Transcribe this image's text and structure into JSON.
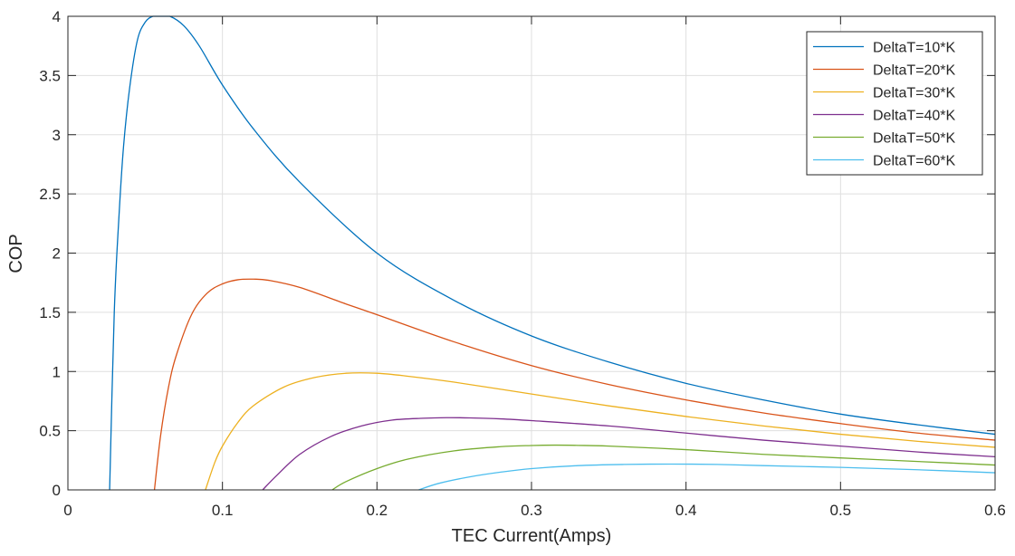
{
  "chart_data": {
    "type": "line",
    "title": "",
    "xlabel": "TEC Current(Amps)",
    "ylabel": "COP",
    "xlim": [
      0,
      0.6
    ],
    "ylim": [
      0,
      4
    ],
    "xticks": [
      0,
      0.1,
      0.2,
      0.3,
      0.4,
      0.5,
      0.6
    ],
    "xtick_labels": [
      "0",
      "0.1",
      "0.2",
      "0.3",
      "0.4",
      "0.5",
      "0.6"
    ],
    "yticks": [
      0,
      0.5,
      1,
      1.5,
      2,
      2.5,
      3,
      3.5,
      4
    ],
    "ytick_labels": [
      "0",
      "0.5",
      "1",
      "1.5",
      "2",
      "2.5",
      "3",
      "3.5",
      "4"
    ],
    "grid": true,
    "legend_position": "top-right",
    "series": [
      {
        "name": "DeltaT=10*K",
        "color": "#0072BD",
        "x": [
          0.027,
          0.03,
          0.033,
          0.036,
          0.04,
          0.045,
          0.05,
          0.055,
          0.06,
          0.066,
          0.075,
          0.085,
          0.1,
          0.12,
          0.15,
          0.2,
          0.25,
          0.3,
          0.35,
          0.4,
          0.45,
          0.5,
          0.55,
          0.6
        ],
        "y": [
          0.0,
          1.5,
          2.3,
          2.9,
          3.4,
          3.8,
          3.95,
          4.0,
          4.0,
          4.0,
          3.92,
          3.75,
          3.42,
          3.05,
          2.6,
          2.0,
          1.6,
          1.3,
          1.08,
          0.9,
          0.76,
          0.64,
          0.55,
          0.47
        ]
      },
      {
        "name": "DeltaT=20*K",
        "color": "#D95319",
        "x": [
          0.056,
          0.06,
          0.065,
          0.07,
          0.08,
          0.09,
          0.1,
          0.11,
          0.12,
          0.13,
          0.15,
          0.18,
          0.2,
          0.25,
          0.3,
          0.35,
          0.4,
          0.45,
          0.5,
          0.55,
          0.6
        ],
        "y": [
          0.0,
          0.46,
          0.86,
          1.13,
          1.48,
          1.66,
          1.74,
          1.775,
          1.78,
          1.77,
          1.71,
          1.57,
          1.48,
          1.25,
          1.05,
          0.89,
          0.76,
          0.65,
          0.56,
          0.48,
          0.42
        ]
      },
      {
        "name": "DeltaT=30*K",
        "color": "#EDB120",
        "x": [
          0.089,
          0.095,
          0.1,
          0.11,
          0.12,
          0.14,
          0.16,
          0.18,
          0.2,
          0.22,
          0.25,
          0.3,
          0.35,
          0.4,
          0.45,
          0.5,
          0.55,
          0.6
        ],
        "y": [
          0.0,
          0.23,
          0.37,
          0.57,
          0.71,
          0.87,
          0.95,
          0.985,
          0.985,
          0.96,
          0.91,
          0.81,
          0.71,
          0.62,
          0.54,
          0.47,
          0.41,
          0.36
        ]
      },
      {
        "name": "DeltaT=40*K",
        "color": "#7E2F8E",
        "x": [
          0.126,
          0.135,
          0.15,
          0.17,
          0.19,
          0.21,
          0.23,
          0.245,
          0.26,
          0.28,
          0.3,
          0.35,
          0.4,
          0.45,
          0.5,
          0.55,
          0.6
        ],
        "y": [
          0.0,
          0.12,
          0.3,
          0.45,
          0.54,
          0.59,
          0.605,
          0.61,
          0.608,
          0.6,
          0.585,
          0.54,
          0.48,
          0.42,
          0.37,
          0.32,
          0.28
        ]
      },
      {
        "name": "DeltaT=50*K",
        "color": "#77AC30",
        "x": [
          0.171,
          0.18,
          0.2,
          0.22,
          0.25,
          0.28,
          0.3,
          0.315,
          0.33,
          0.35,
          0.4,
          0.45,
          0.5,
          0.55,
          0.6
        ],
        "y": [
          0.0,
          0.07,
          0.18,
          0.26,
          0.33,
          0.365,
          0.375,
          0.378,
          0.376,
          0.37,
          0.34,
          0.3,
          0.27,
          0.24,
          0.21
        ]
      },
      {
        "name": "DeltaT=60*K",
        "color": "#4DBEEE",
        "x": [
          0.227,
          0.24,
          0.26,
          0.28,
          0.3,
          0.33,
          0.36,
          0.39,
          0.42,
          0.45,
          0.5,
          0.55,
          0.6
        ],
        "y": [
          0.0,
          0.055,
          0.11,
          0.15,
          0.18,
          0.205,
          0.215,
          0.218,
          0.215,
          0.205,
          0.19,
          0.17,
          0.145
        ]
      }
    ]
  }
}
